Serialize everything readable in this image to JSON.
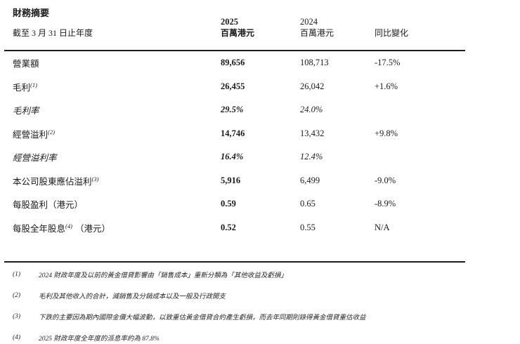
{
  "colors": {
    "background": "#ffffff",
    "text": "#1a1a1a",
    "rule": "#1c1c1c"
  },
  "page": {
    "title": "財務摘要",
    "period_label": "截至 3 月 31 日止年度"
  },
  "table": {
    "columns": [
      {
        "year": "2025",
        "unit": "百萬港元"
      },
      {
        "year": "2024",
        "unit": "百萬港元"
      },
      {
        "label": "同比變化"
      }
    ],
    "rows": [
      {
        "label": "營業額",
        "sup": "",
        "suffix": "",
        "v2025": "89,656",
        "v2024": "108,713",
        "yoy": "-17.5%"
      },
      {
        "label": "毛利",
        "sup": "(1)",
        "suffix": "",
        "v2025": "26,455",
        "v2024": "26,042",
        "yoy": "+1.6%"
      },
      {
        "label": "毛利率",
        "sup": "",
        "suffix": "",
        "v2025": "29.5%",
        "v2024": "24.0%",
        "yoy": ""
      },
      {
        "label": "經營溢利",
        "sup": "(2)",
        "suffix": "",
        "v2025": "14,746",
        "v2024": "13,432",
        "yoy": "+9.8%"
      },
      {
        "label": "經營溢利率",
        "sup": "",
        "suffix": "",
        "v2025": "16.4%",
        "v2024": "12.4%",
        "yoy": ""
      },
      {
        "label": "本公司股東應佔溢利",
        "sup": "(3)",
        "suffix": "",
        "v2025": "5,916",
        "v2024": "6,499",
        "yoy": "-9.0%"
      },
      {
        "label": "每股盈利（港元）",
        "sup": "",
        "suffix": "",
        "v2025": "0.59",
        "v2024": "0.65",
        "yoy": "-8.9%"
      },
      {
        "label": "每股全年股息",
        "sup": "(4)",
        "suffix": "（港元）",
        "v2025": "0.52",
        "v2024": "0.55",
        "yoy": "N/A"
      }
    ]
  },
  "footnotes": [
    {
      "num": "(1)",
      "text": "2024 財政年度及以前的黃金借貸影響由「銷售成本」重新分類為「其他收益及虧損」"
    },
    {
      "num": "(2)",
      "text": "毛利及其他收入的合計，減銷售及分銷成本以及一般及行政開支"
    },
    {
      "num": "(3)",
      "text": "下跌的主要因為期內國際金價大幅波動，以致重估黃金借貸合約產生虧損，而去年同期則錄得黃金借貸重估收益"
    },
    {
      "num": "(4)",
      "text": "2025 財政年度全年度的派息率約為 87.8%"
    }
  ]
}
